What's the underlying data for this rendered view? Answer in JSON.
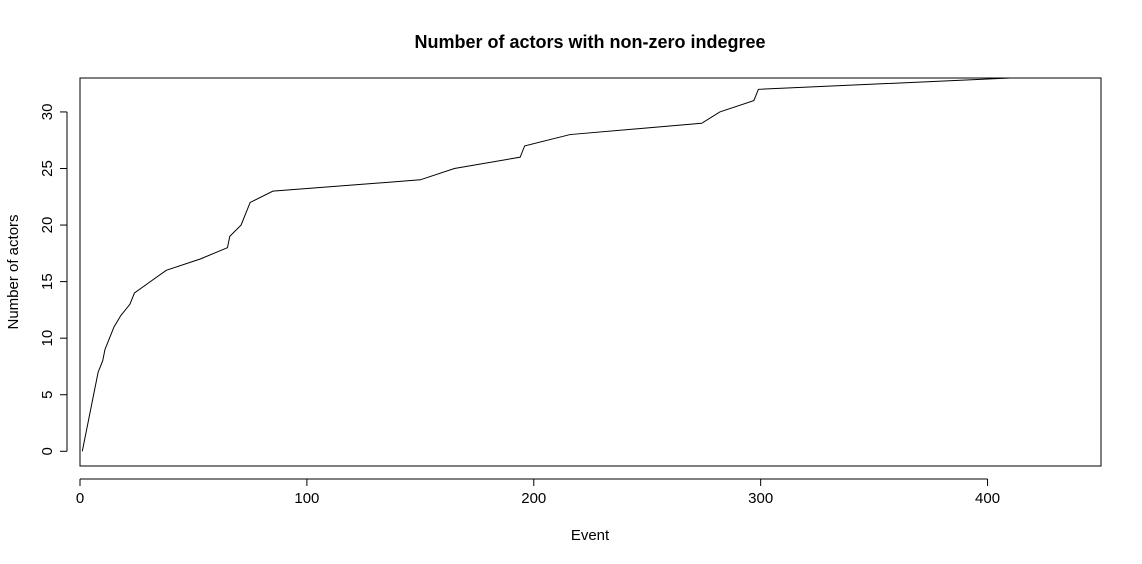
{
  "chart_data": {
    "type": "line",
    "line_style": "step",
    "title": "Number of actors with non-zero indegree",
    "xlabel": "Event",
    "ylabel": "Number of actors",
    "xlim": [
      0,
      450
    ],
    "ylim": [
      -1.3,
      33
    ],
    "x_ticks": [
      0,
      100,
      200,
      300,
      400
    ],
    "y_ticks": [
      0,
      5,
      10,
      15,
      20,
      25,
      30
    ],
    "grid": false,
    "legend": "none",
    "line_color": "#000000",
    "points": [
      [
        1,
        0
      ],
      [
        2,
        1
      ],
      [
        3,
        2
      ],
      [
        4,
        3
      ],
      [
        5,
        4
      ],
      [
        6,
        5
      ],
      [
        7,
        6
      ],
      [
        8,
        7
      ],
      [
        10,
        8
      ],
      [
        11,
        9
      ],
      [
        13,
        10
      ],
      [
        15,
        11
      ],
      [
        18,
        12
      ],
      [
        22,
        13
      ],
      [
        24,
        14
      ],
      [
        31,
        15
      ],
      [
        38,
        16
      ],
      [
        53,
        17
      ],
      [
        65,
        18
      ],
      [
        66,
        19
      ],
      [
        71,
        20
      ],
      [
        73,
        21
      ],
      [
        75,
        22
      ],
      [
        85,
        23
      ],
      [
        150,
        24
      ],
      [
        165,
        25
      ],
      [
        194,
        26
      ],
      [
        196,
        27
      ],
      [
        216,
        28
      ],
      [
        274,
        29
      ],
      [
        282,
        30
      ],
      [
        297,
        31
      ],
      [
        299,
        32
      ],
      [
        410,
        33
      ],
      [
        434,
        33
      ]
    ]
  }
}
